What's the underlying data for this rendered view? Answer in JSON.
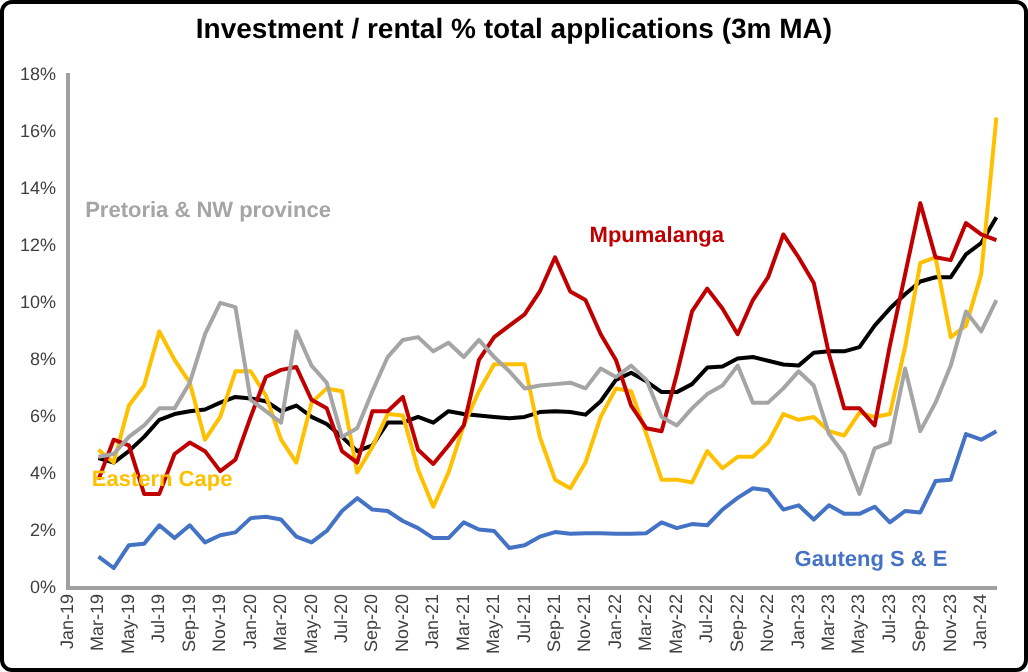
{
  "chart_data": {
    "type": "line",
    "title": "Investment / rental % total applications (3m MA)",
    "categories": [
      "Jan-19",
      null,
      "Mar-19",
      null,
      "May-19",
      null,
      "Jul-19",
      null,
      "Sep-19",
      null,
      "Nov-19",
      null,
      "Jan-20",
      null,
      "Mar-20",
      null,
      "May-20",
      null,
      "Jul-20",
      null,
      "Sep-20",
      null,
      "Nov-20",
      null,
      "Jan-21",
      null,
      "Mar-21",
      null,
      "May-21",
      null,
      "Jul-21",
      null,
      "Sep-21",
      null,
      "Nov-21",
      null,
      "Jan-22",
      null,
      "Mar-22",
      null,
      "May-22",
      null,
      "Jul-22",
      null,
      "Sep-22",
      null,
      "Nov-22",
      null,
      "Jan-23",
      null,
      "Mar-23",
      null,
      "May-23",
      null,
      "Jul-23",
      null,
      "Sep-23",
      null,
      "Nov-23",
      null,
      "Jan-24",
      null
    ],
    "series": [
      {
        "name": "Pretoria & NW province",
        "color": "#a5a5a5",
        "values": [
          null,
          null,
          4.6,
          4.7,
          5.3,
          5.7,
          6.3,
          6.3,
          7.2,
          8.9,
          10.0,
          9.85,
          6.6,
          6.2,
          5.8,
          9.0,
          7.8,
          7.2,
          5.3,
          5.6,
          6.9,
          8.1,
          8.7,
          8.8,
          8.3,
          8.6,
          8.1,
          8.7,
          8.1,
          7.6,
          7.0,
          7.1,
          7.15,
          7.2,
          7.0,
          7.7,
          7.4,
          7.8,
          7.3,
          6.0,
          5.7,
          6.3,
          6.8,
          7.1,
          7.8,
          6.5,
          6.5,
          7.0,
          7.6,
          7.1,
          5.4,
          4.7,
          3.3,
          4.9,
          5.1,
          7.7,
          5.5,
          6.5,
          7.8,
          9.7,
          9.0,
          10.1
        ]
      },
      {
        "name": "Mpumalanga",
        "color": "#c00000",
        "values": [
          null,
          null,
          3.8,
          5.2,
          5.0,
          3.3,
          3.3,
          4.7,
          5.1,
          4.8,
          4.1,
          4.5,
          6.0,
          7.4,
          7.65,
          7.75,
          6.6,
          6.3,
          4.8,
          4.4,
          6.2,
          6.2,
          6.7,
          4.85,
          4.35,
          5.0,
          5.7,
          8.0,
          8.8,
          9.2,
          9.6,
          10.4,
          11.6,
          10.4,
          10.1,
          8.9,
          8.0,
          6.4,
          5.6,
          5.5,
          7.5,
          9.7,
          10.5,
          9.8,
          8.9,
          10.1,
          10.9,
          12.4,
          11.6,
          10.7,
          8.2,
          6.3,
          6.3,
          5.7,
          8.5,
          11.0,
          13.5,
          11.6,
          11.5,
          12.8,
          12.4,
          12.2
        ]
      },
      {
        "name": "Eastern Cape",
        "color": "#ffc000",
        "values": [
          null,
          null,
          4.85,
          4.4,
          6.4,
          7.1,
          9.0,
          8.0,
          7.2,
          5.2,
          6.0,
          7.6,
          7.6,
          6.75,
          5.2,
          4.4,
          6.5,
          7.0,
          6.9,
          4.05,
          4.95,
          6.1,
          6.05,
          4.15,
          2.85,
          4.05,
          5.7,
          6.9,
          7.85,
          7.85,
          7.85,
          5.3,
          3.8,
          3.5,
          4.4,
          6.0,
          7.0,
          6.9,
          5.4,
          3.8,
          3.8,
          3.7,
          4.8,
          4.2,
          4.6,
          4.6,
          5.1,
          6.1,
          5.9,
          6.0,
          5.5,
          5.35,
          6.15,
          6.0,
          6.1,
          8.45,
          11.4,
          11.6,
          8.8,
          9.2,
          11.0,
          16.5
        ]
      },
      {
        "name": "Gauteng S & E",
        "color": "#4472c4",
        "values": [
          null,
          null,
          1.1,
          0.7,
          1.5,
          1.55,
          2.2,
          1.75,
          2.2,
          1.6,
          1.85,
          1.95,
          2.45,
          2.5,
          2.4,
          1.8,
          1.6,
          2.0,
          2.7,
          3.15,
          2.75,
          2.7,
          2.35,
          2.1,
          1.75,
          1.75,
          2.3,
          2.05,
          2.0,
          1.4,
          1.5,
          1.8,
          1.96,
          1.9,
          1.92,
          1.92,
          1.9,
          1.9,
          1.92,
          2.3,
          2.1,
          2.24,
          2.2,
          2.75,
          3.16,
          3.5,
          3.43,
          2.75,
          2.9,
          2.4,
          2.9,
          2.6,
          2.6,
          2.85,
          2.3,
          2.7,
          2.65,
          3.75,
          3.8,
          5.4,
          5.2,
          5.5
        ]
      },
      {
        "color": "#000000",
        "values": [
          null,
          null,
          4.56,
          4.4,
          4.8,
          5.3,
          5.9,
          6.1,
          6.2,
          6.26,
          6.5,
          6.7,
          6.65,
          6.55,
          6.2,
          6.4,
          6.0,
          5.75,
          5.3,
          4.8,
          5.0,
          5.8,
          5.8,
          6.0,
          5.8,
          6.2,
          6.1,
          6.05,
          6.0,
          5.95,
          6.0,
          6.17,
          6.2,
          6.17,
          6.08,
          6.55,
          7.3,
          7.55,
          7.25,
          6.87,
          6.87,
          7.15,
          7.73,
          7.77,
          8.05,
          8.1,
          7.97,
          7.84,
          7.8,
          8.25,
          8.3,
          8.3,
          8.45,
          9.2,
          9.8,
          10.3,
          10.75,
          10.9,
          10.9,
          11.7,
          12.1,
          13.0
        ]
      }
    ],
    "ylim": [
      0,
      18
    ],
    "yticks": [
      {
        "value": 0,
        "label": "0%"
      },
      {
        "value": 2,
        "label": "2%"
      },
      {
        "value": 4,
        "label": "4%"
      },
      {
        "value": 6,
        "label": "6%"
      },
      {
        "value": 8,
        "label": "8%"
      },
      {
        "value": 10,
        "label": "10%"
      },
      {
        "value": 12,
        "label": "12%"
      },
      {
        "value": 14,
        "label": "14%"
      },
      {
        "value": 16,
        "label": "16%"
      },
      {
        "value": 18,
        "label": "18%"
      }
    ],
    "grid": false,
    "legend": false,
    "marker": "none",
    "line_style": "solid"
  }
}
